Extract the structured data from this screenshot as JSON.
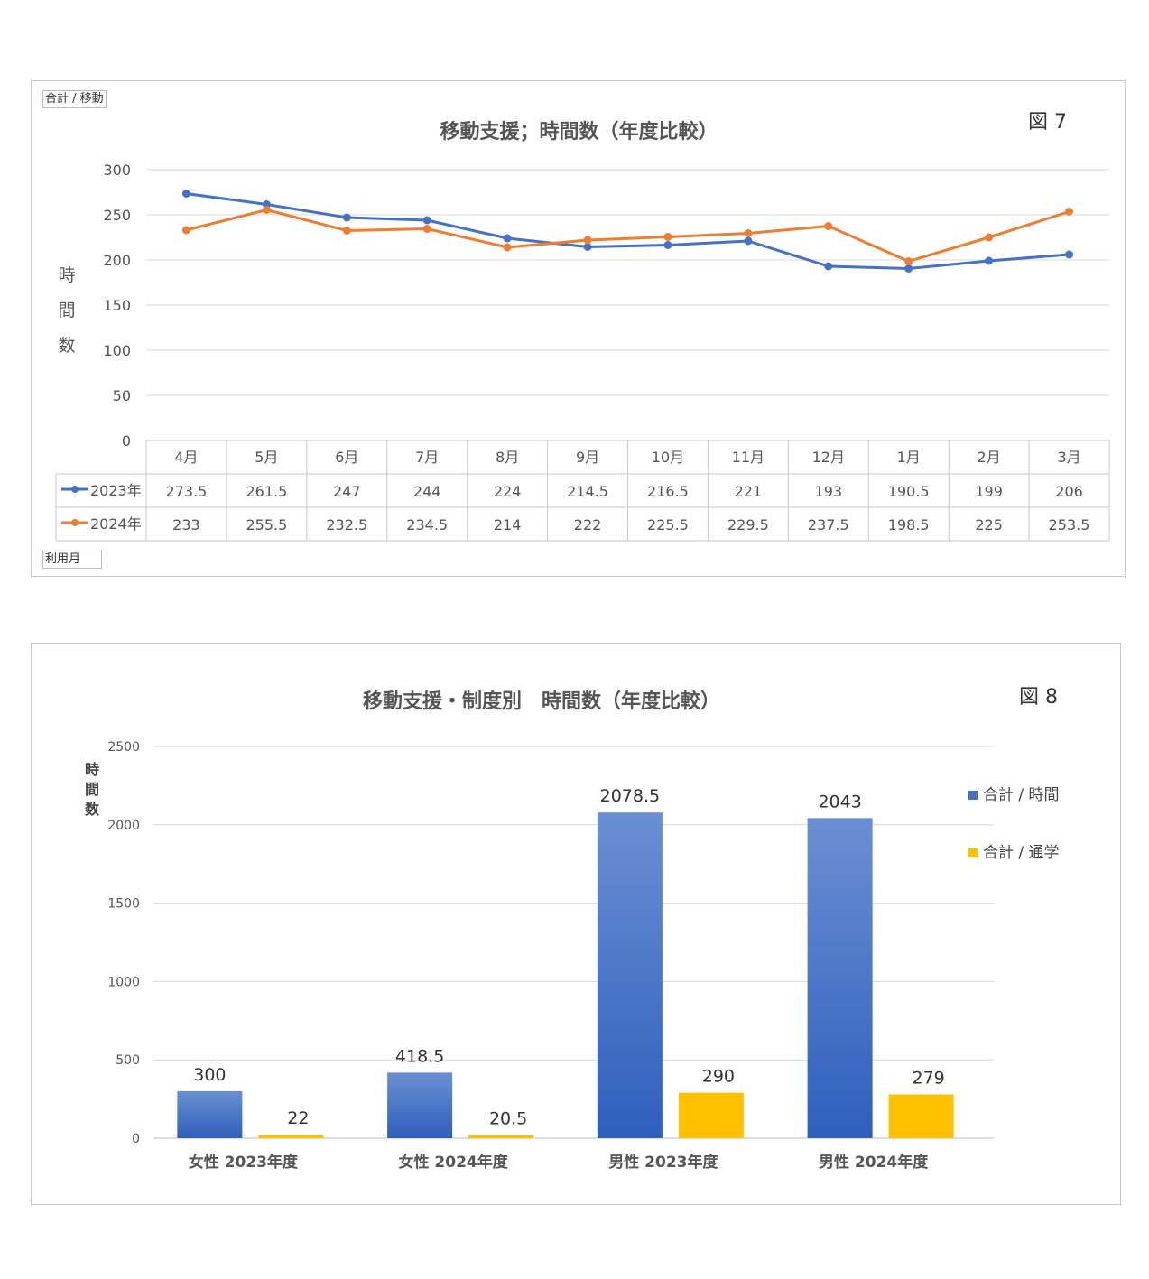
{
  "figure7": {
    "field_button_top": "合計 / 移動",
    "field_button_bottom": "利用月",
    "title": "移動支援；時間数（年度比較）",
    "figure_label": "図 7",
    "ylabel": [
      "時",
      "間",
      "数"
    ]
  },
  "figure8": {
    "title": "移動支援・制度別　時間数（年度比較）",
    "figure_label": "図 8",
    "ylabel": [
      "時",
      "間",
      "数"
    ]
  },
  "colors": {
    "series_2023": "#4472C4",
    "series_2024": "#ED7D31",
    "bar_blue": "#4472C4",
    "bar_gold": "#FFC000"
  },
  "chart_data": [
    {
      "type": "line",
      "title": "移動支援；時間数（年度比較）",
      "xlabel": "利用月",
      "ylabel": "時間数",
      "ylim": [
        0,
        300
      ],
      "yticks": [
        0,
        50,
        100,
        150,
        200,
        250,
        300
      ],
      "grid": true,
      "legend": "data-table",
      "categories": [
        "4月",
        "5月",
        "6月",
        "7月",
        "8月",
        "9月",
        "10月",
        "11月",
        "12月",
        "1月",
        "2月",
        "3月"
      ],
      "series": [
        {
          "name": "2023年",
          "values": [
            273.5,
            261.5,
            247,
            244,
            224,
            214.5,
            216.5,
            221,
            193,
            190.5,
            199,
            206
          ]
        },
        {
          "name": "2024年",
          "values": [
            233,
            255.5,
            232.5,
            234.5,
            214,
            222,
            225.5,
            229.5,
            237.5,
            198.5,
            225,
            253.5
          ]
        }
      ]
    },
    {
      "type": "bar",
      "title": "移動支援・制度別　時間数（年度比較）",
      "ylabel": "時間数",
      "ylim": [
        0,
        2500
      ],
      "yticks": [
        0,
        500,
        1000,
        1500,
        2000,
        2500
      ],
      "grid": true,
      "legend": "right",
      "categories": [
        "女性 2023年度",
        "女性 2024年度",
        "男性 2023年度",
        "男性 2024年度"
      ],
      "series": [
        {
          "name": "合計 / 時間",
          "values": [
            300,
            418.5,
            2078.5,
            2043
          ]
        },
        {
          "name": "合計 / 通学",
          "values": [
            22,
            20.5,
            290,
            279
          ]
        }
      ]
    }
  ]
}
